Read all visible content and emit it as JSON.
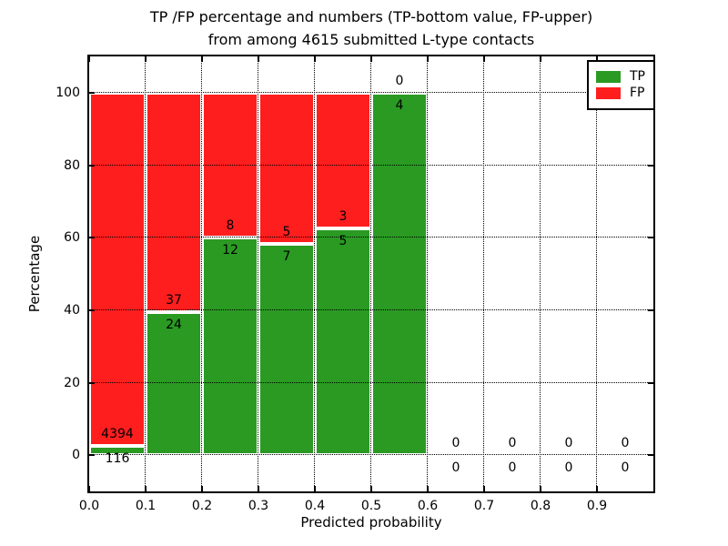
{
  "figure": {
    "title_line1": "TP /FP percentage and numbers (TP-bottom value, FP-upper)",
    "title_line2": "from among 4615 submitted L-type contacts",
    "xlabel": "Predicted probability",
    "ylabel": "Percentage"
  },
  "legend": {
    "items": [
      {
        "label": "TP",
        "color": "#2a9a23"
      },
      {
        "label": "FP",
        "color": "#ff1e1e"
      }
    ]
  },
  "chart_data": {
    "type": "bar",
    "stacked": true,
    "title": "TP /FP percentage and numbers (TP-bottom value, FP-upper) from among 4615 submitted L-type contacts",
    "xlabel": "Predicted probability",
    "ylabel": "Percentage",
    "xlim": [
      0.0,
      1.0
    ],
    "ylim": [
      -10,
      110
    ],
    "grid": true,
    "legend_position": "upper right",
    "x_ticks": [
      0.0,
      0.1,
      0.2,
      0.3,
      0.4,
      0.5,
      0.6,
      0.7,
      0.8,
      0.9
    ],
    "x_tick_labels": [
      "0.0",
      "0.1",
      "0.2",
      "0.3",
      "0.4",
      "0.5",
      "0.6",
      "0.7",
      "0.8",
      "0.9"
    ],
    "y_ticks": [
      0,
      20,
      40,
      60,
      80,
      100
    ],
    "y_tick_labels": [
      "0",
      "20",
      "40",
      "60",
      "80",
      "100"
    ],
    "bin_edges": [
      0.0,
      0.1,
      0.2,
      0.3,
      0.4,
      0.5,
      0.6,
      0.7,
      0.8,
      0.9,
      1.0
    ],
    "total_contacts": 4615,
    "series": [
      {
        "name": "TP",
        "color": "#2a9a23",
        "counts": [
          116,
          24,
          12,
          7,
          5,
          4,
          0,
          0,
          0,
          0
        ],
        "percent": [
          2.57,
          39.34,
          60.0,
          58.33,
          62.5,
          100.0,
          0,
          0,
          0,
          0
        ]
      },
      {
        "name": "FP",
        "color": "#ff1e1e",
        "counts": [
          4394,
          37,
          8,
          5,
          3,
          0,
          0,
          0,
          0,
          0
        ],
        "percent": [
          97.43,
          60.66,
          40.0,
          41.67,
          37.5,
          0.0,
          0,
          0,
          0,
          0
        ]
      }
    ]
  }
}
